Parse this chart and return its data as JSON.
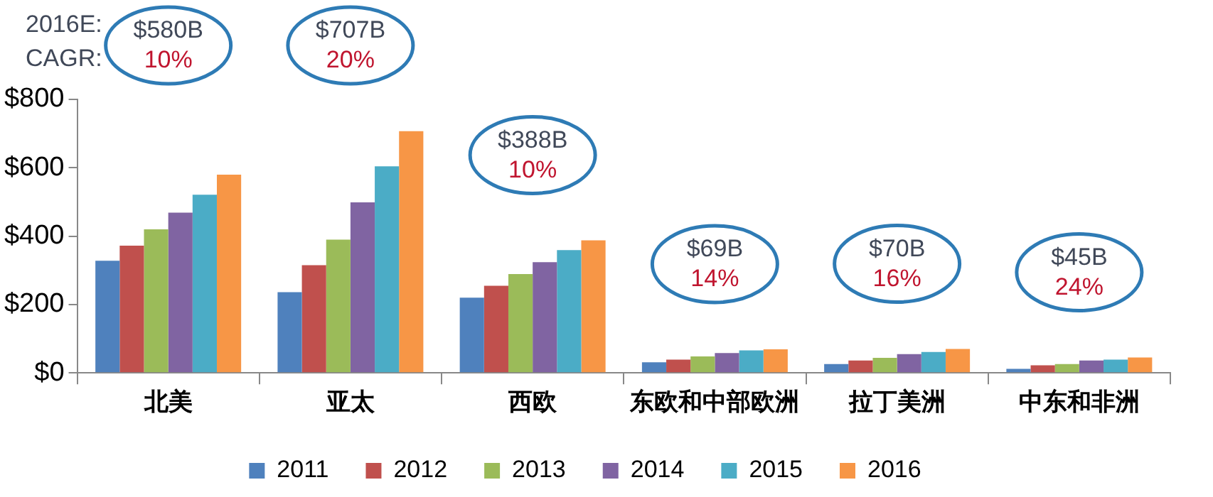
{
  "chart_data": {
    "type": "bar",
    "categories": [
      "北美",
      "亚太",
      "西欧",
      "东欧和中部欧洲",
      "拉丁美洲",
      "中东和非洲"
    ],
    "series": [
      {
        "name": "2011",
        "color": "#4f81bd",
        "values": [
          328,
          236,
          220,
          31,
          26,
          12
        ]
      },
      {
        "name": "2012",
        "color": "#c0504d",
        "values": [
          372,
          315,
          255,
          39,
          36,
          22
        ]
      },
      {
        "name": "2013",
        "color": "#9bbb59",
        "values": [
          420,
          390,
          289,
          48,
          44,
          26
        ]
      },
      {
        "name": "2014",
        "color": "#8064a2",
        "values": [
          469,
          499,
          324,
          58,
          55,
          36
        ]
      },
      {
        "name": "2015",
        "color": "#4bacc6",
        "values": [
          521,
          604,
          359,
          66,
          61,
          39
        ]
      },
      {
        "name": "2016",
        "color": "#f79646",
        "values": [
          580,
          707,
          388,
          69,
          70,
          45
        ]
      }
    ],
    "ylim": [
      0,
      800
    ],
    "yticks": [
      {
        "value": 0,
        "label": "$0"
      },
      {
        "value": 200,
        "label": "$200"
      },
      {
        "value": 400,
        "label": "$400"
      },
      {
        "value": 600,
        "label": "$600"
      },
      {
        "value": 800,
        "label": "$800"
      }
    ],
    "grid": false,
    "legend": "bottom",
    "annotations": [
      "2016E:\nCAGR:",
      "$580B\n10%",
      "$707B\n20%",
      "$388B\n10%",
      "$69B\n14%",
      "$70B\n16%",
      "$45B\n24%"
    ]
  }
}
